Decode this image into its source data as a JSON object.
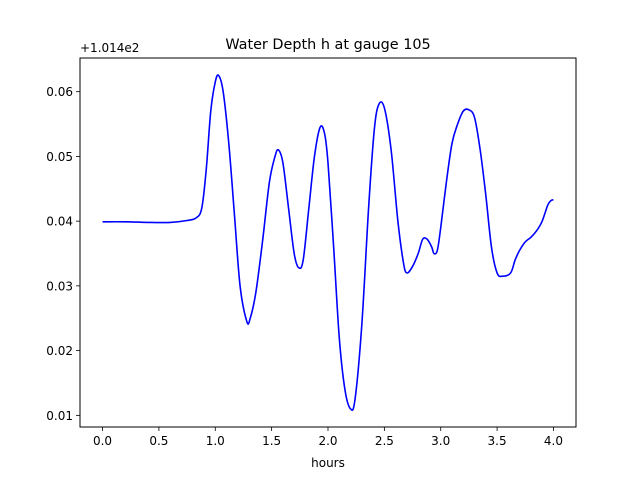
{
  "chart_data": {
    "type": "line",
    "title": "Water Depth h at gauge 105",
    "xlabel": "hours",
    "ylabel": "",
    "y_offset_label": "+1.014e2",
    "xlim": [
      -0.2,
      4.2
    ],
    "ylim": [
      0.0082,
      0.0652
    ],
    "grid": false,
    "legend": "none",
    "xticks": [
      0.0,
      0.5,
      1.0,
      1.5,
      2.0,
      2.5,
      3.0,
      3.5,
      4.0
    ],
    "xtick_labels": [
      "0.0",
      "0.5",
      "1.0",
      "1.5",
      "2.0",
      "2.5",
      "3.0",
      "3.5",
      "4.0"
    ],
    "yticks": [
      0.01,
      0.02,
      0.03,
      0.04,
      0.05,
      0.06
    ],
    "ytick_labels": [
      "0.01",
      "0.02",
      "0.03",
      "0.04",
      "0.05",
      "0.06"
    ],
    "series": [
      {
        "color": "#0000ff",
        "x": [
          0.0,
          0.2,
          0.4,
          0.6,
          0.75,
          0.83,
          0.88,
          0.92,
          0.96,
          1.0,
          1.03,
          1.07,
          1.12,
          1.17,
          1.22,
          1.28,
          1.31,
          1.36,
          1.42,
          1.48,
          1.53,
          1.56,
          1.6,
          1.65,
          1.7,
          1.74,
          1.78,
          1.83,
          1.88,
          1.93,
          1.97,
          2.0,
          2.05,
          2.1,
          2.15,
          2.2,
          2.24,
          2.3,
          2.36,
          2.41,
          2.45,
          2.5,
          2.56,
          2.62,
          2.67,
          2.7,
          2.75,
          2.8,
          2.84,
          2.88,
          2.92,
          2.94,
          2.97,
          3.0,
          3.05,
          3.1,
          3.15,
          3.2,
          3.25,
          3.3,
          3.35,
          3.4,
          3.45,
          3.5,
          3.55,
          3.62,
          3.66,
          3.7,
          3.75,
          3.8,
          3.85,
          3.9,
          3.95,
          3.98,
          4.0
        ],
        "y": [
          0.0399,
          0.0399,
          0.0398,
          0.0398,
          0.0401,
          0.0405,
          0.042,
          0.048,
          0.057,
          0.0615,
          0.0625,
          0.06,
          0.052,
          0.041,
          0.03,
          0.0245,
          0.025,
          0.029,
          0.037,
          0.046,
          0.05,
          0.051,
          0.049,
          0.042,
          0.035,
          0.0328,
          0.034,
          0.042,
          0.05,
          0.0545,
          0.0535,
          0.049,
          0.036,
          0.022,
          0.014,
          0.011,
          0.0125,
          0.024,
          0.042,
          0.054,
          0.058,
          0.0575,
          0.051,
          0.04,
          0.0335,
          0.032,
          0.033,
          0.035,
          0.0372,
          0.0372,
          0.036,
          0.035,
          0.0355,
          0.039,
          0.046,
          0.052,
          0.055,
          0.057,
          0.0572,
          0.056,
          0.051,
          0.044,
          0.036,
          0.032,
          0.0315,
          0.032,
          0.034,
          0.0355,
          0.0368,
          0.0375,
          0.0385,
          0.04,
          0.0425,
          0.0432,
          0.0433
        ]
      }
    ]
  }
}
